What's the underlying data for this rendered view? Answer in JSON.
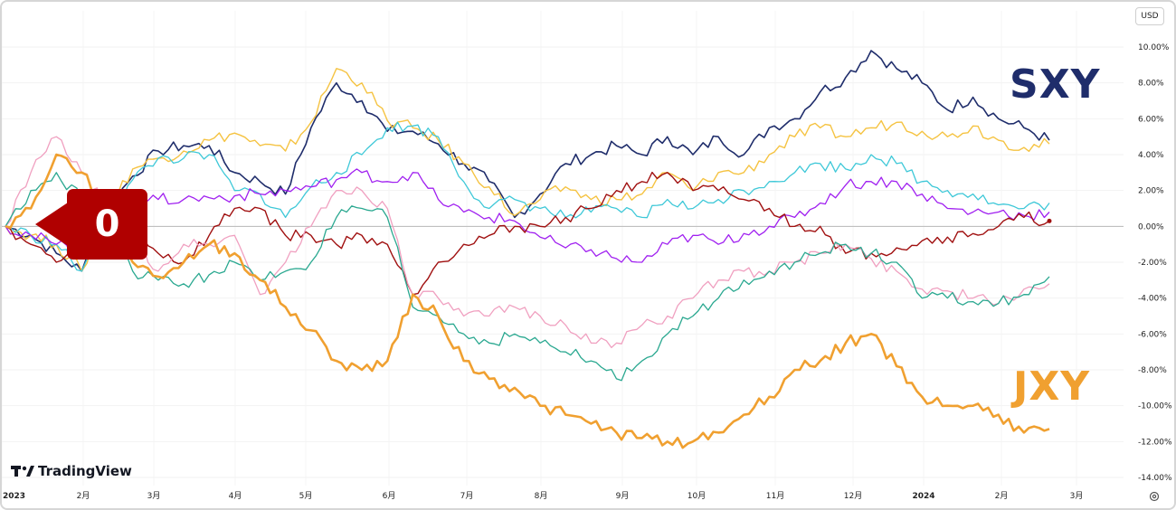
{
  "toolbar": {
    "currency": "USD"
  },
  "brand": {
    "name": "TradingView"
  },
  "annotations": {
    "top_label": "SXY",
    "bottom_label": "JXY",
    "callout": "0"
  },
  "colors": {
    "sxy": "#1f2d6b",
    "jxy": "#f0a030",
    "gold": "#f5c342",
    "cyan": "#3ec8d8",
    "purple": "#a020f0",
    "red": "#a01010",
    "pink": "#f0a0c0",
    "teal": "#2aa890",
    "callout": "#b00000"
  },
  "chart_data": {
    "type": "line",
    "y_unit": "%",
    "ylim": [
      -14,
      10
    ],
    "y_ticks": [
      "10.00%",
      "8.00%",
      "6.00%",
      "4.00%",
      "2.00%",
      "0.00%",
      "-2.00%",
      "-4.00%",
      "-6.00%",
      "-8.00%",
      "-10.00%",
      "-12.00%",
      "-14.00%"
    ],
    "x_ticks": [
      {
        "label": "2023",
        "bold": true
      },
      {
        "label": "2月",
        "bold": false
      },
      {
        "label": "3月",
        "bold": false
      },
      {
        "label": "4月",
        "bold": false
      },
      {
        "label": "5月",
        "bold": false
      },
      {
        "label": "6月",
        "bold": false
      },
      {
        "label": "7月",
        "bold": false
      },
      {
        "label": "8月",
        "bold": false
      },
      {
        "label": "9月",
        "bold": false
      },
      {
        "label": "10月",
        "bold": false
      },
      {
        "label": "11月",
        "bold": false
      },
      {
        "label": "12月",
        "bold": false
      },
      {
        "label": "2024",
        "bold": true
      },
      {
        "label": "2月",
        "bold": false
      },
      {
        "label": "3月",
        "bold": false
      }
    ],
    "grid": true,
    "series": [
      {
        "name": "SXY",
        "color": "#1f2d6b",
        "width": 1.6,
        "values": [
          0,
          -0.5,
          -1.5,
          -2.5,
          1,
          2.8,
          4.2,
          4.5,
          4.5,
          3,
          2.5,
          1.8,
          5.5,
          8,
          7,
          5.3,
          5.3,
          4.6,
          3.5,
          2.5,
          0.5,
          1.8,
          3.5,
          4,
          4.5,
          4,
          5,
          4,
          5,
          4,
          5.5,
          6,
          7.5,
          8.3,
          9.8,
          8.8,
          8,
          6.5,
          7.2,
          6,
          5.5,
          4.8
        ]
      },
      {
        "name": "",
        "color": "#f5c342",
        "width": 1.4,
        "values": [
          0,
          -0.5,
          -1,
          -2.5,
          1,
          3.2,
          3.8,
          4.2,
          4.8,
          5.2,
          4.5,
          4.2,
          5.8,
          8.8,
          8,
          5.9,
          5.5,
          4.8,
          3.5,
          2.2,
          0.6,
          1.5,
          2.2,
          1.5,
          1.5,
          1.8,
          3,
          2,
          3,
          3,
          4,
          5,
          5.5,
          5,
          5.5,
          5.8,
          5.3,
          5,
          5.6,
          4.8,
          4.4,
          4.6
        ]
      },
      {
        "name": "",
        "color": "#3ec8d8",
        "width": 1.3,
        "values": [
          0,
          -0.5,
          -1,
          -2.5,
          0.5,
          2.6,
          3.8,
          3.8,
          4,
          2,
          1.8,
          0.5,
          2.2,
          3,
          4,
          5.5,
          5.6,
          5,
          2.5,
          1,
          1.5,
          1,
          0.5,
          0.8,
          1,
          0.5,
          1.5,
          1,
          1.5,
          2,
          2.5,
          3,
          3.5,
          3.2,
          4,
          3.5,
          2.5,
          2,
          1.8,
          1.2,
          1,
          1.3
        ]
      },
      {
        "name": "",
        "color": "#a020f0",
        "width": 1.3,
        "values": [
          0,
          -0.5,
          -1,
          -1.5,
          0.3,
          1.5,
          1.5,
          1.5,
          1.6,
          1.7,
          1.8,
          2,
          2.2,
          2.6,
          3,
          2.5,
          3,
          1.5,
          0.8,
          0.5,
          0.3,
          -0.6,
          -1.2,
          -1.3,
          -1.8,
          -2,
          -1,
          -0.5,
          -1,
          -0.4,
          0,
          0.5,
          1.3,
          2.3,
          2.5,
          2.5,
          1.8,
          1,
          0.8,
          0.8,
          0.6,
          0.8
        ]
      },
      {
        "name": "",
        "color": "#a01010",
        "width": 1.4,
        "values": [
          0,
          -1,
          -2,
          -1,
          1,
          0,
          -1.5,
          -2,
          -0.5,
          1,
          1,
          -0.5,
          -0.5,
          -1,
          -0.5,
          -1,
          -3.8,
          -2,
          -1,
          -0.5,
          0,
          0,
          0.5,
          1,
          2,
          2.5,
          3,
          2,
          2,
          1.5,
          1,
          0,
          0,
          -1.5,
          -1.5,
          -1.2,
          -0.8,
          -0.6,
          -0.4,
          0,
          0.5,
          0.3
        ]
      },
      {
        "name": "",
        "color": "#f0a0c0",
        "width": 1.3,
        "values": [
          0,
          3,
          5,
          3,
          1,
          -0.5,
          -2.5,
          -1,
          -1,
          -0.5,
          -3.8,
          -2,
          0,
          2,
          2,
          1,
          -3.8,
          -4,
          -5,
          -5,
          -4.5,
          -5,
          -5.5,
          -6.5,
          -6.5,
          -5.5,
          -5,
          -4,
          -3,
          -2.5,
          -2.5,
          -2,
          -1.5,
          -1,
          -1.8,
          -2.5,
          -3.5,
          -3.6,
          -4,
          -4.3,
          -3.5,
          -3.2
        ]
      },
      {
        "name": "",
        "color": "#2aa890",
        "width": 1.3,
        "values": [
          0,
          2,
          3,
          1.5,
          0,
          -2.5,
          -3,
          -3.2,
          -2.7,
          -2,
          -3,
          -2.5,
          -2,
          0.5,
          1,
          0.5,
          -4.5,
          -5,
          -6,
          -6.5,
          -6,
          -6.5,
          -7,
          -7.5,
          -8.5,
          -7.5,
          -6,
          -5,
          -4,
          -3,
          -2.5,
          -2,
          -1.5,
          -1,
          -1.5,
          -2,
          -4,
          -4,
          -4.2,
          -4.3,
          -3.8,
          -2.8
        ]
      },
      {
        "name": "JXY",
        "color": "#f0a030",
        "width": 2.6,
        "values": [
          0,
          1,
          4,
          3,
          1,
          -2,
          -2.8,
          -2,
          -1,
          -1.5,
          -3,
          -4.5,
          -5.8,
          -7.5,
          -8,
          -7.5,
          -3.8,
          -5,
          -7.5,
          -8.5,
          -9,
          -10,
          -10.5,
          -11,
          -11.5,
          -11.8,
          -12,
          -12,
          -11.5,
          -10.5,
          -9.5,
          -8,
          -7.5,
          -6.5,
          -6,
          -7.8,
          -9.5,
          -10,
          -10,
          -10.5,
          -11.5,
          -11.3
        ]
      }
    ]
  }
}
